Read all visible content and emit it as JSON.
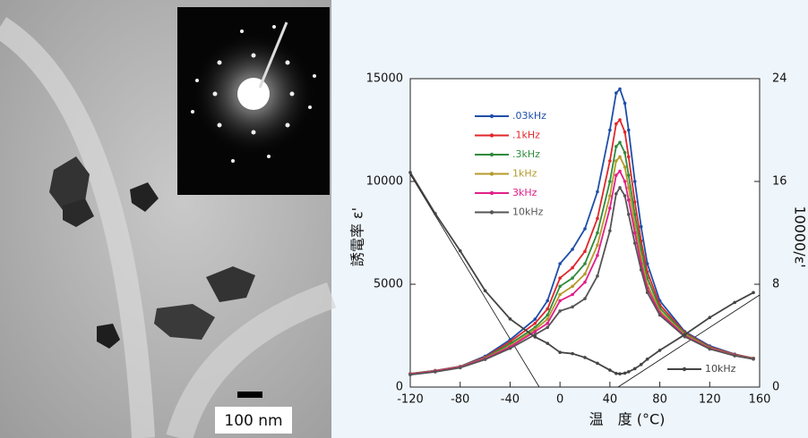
{
  "figure": {
    "scale_bar_label": "100 nm"
  },
  "chart_data": {
    "type": "line",
    "x_label": "温　度 (°C)",
    "y_label": "誘電率 ε'",
    "y2_label": "10000/ε'",
    "x": [
      -120,
      -100,
      -80,
      -60,
      -40,
      -20,
      -10,
      0,
      10,
      20,
      30,
      40,
      45,
      48,
      52,
      55,
      60,
      65,
      70,
      80,
      100,
      120,
      140,
      155
    ],
    "xlim": [
      -120,
      160
    ],
    "xticks": [
      -120,
      -80,
      -40,
      0,
      40,
      80,
      120,
      160
    ],
    "ylim": [
      0,
      15000
    ],
    "yticks": [
      0,
      5000,
      10000,
      15000
    ],
    "y2lim": [
      0,
      24
    ],
    "y2ticks": [
      0,
      8,
      16,
      24
    ],
    "legend": "upper left",
    "series": [
      {
        "name": ".03kHz",
        "color": "#1f4fa8",
        "values": [
          650,
          800,
          1000,
          1500,
          2300,
          3300,
          4200,
          6000,
          6700,
          7700,
          9500,
          12500,
          14300,
          14500,
          13800,
          12500,
          10000,
          7800,
          6000,
          4200,
          2700,
          2000,
          1600,
          1400
        ]
      },
      {
        "name": ".1kHz",
        "color": "#e0262b",
        "values": [
          650,
          800,
          1000,
          1450,
          2200,
          3100,
          3800,
          5300,
          5800,
          6600,
          8200,
          11000,
          12800,
          13000,
          12400,
          11200,
          9000,
          7100,
          5600,
          4000,
          2650,
          1950,
          1580,
          1400
        ]
      },
      {
        "name": ".3kHz",
        "color": "#2e8b3c",
        "values": [
          650,
          790,
          990,
          1420,
          2100,
          2900,
          3500,
          4900,
          5300,
          6000,
          7500,
          10000,
          11700,
          11900,
          11400,
          10300,
          8400,
          6700,
          5300,
          3850,
          2600,
          1920,
          1560,
          1390
        ]
      },
      {
        "name": "1kHz",
        "color": "#b59a2a",
        "values": [
          640,
          780,
          980,
          1400,
          2000,
          2800,
          3300,
          4500,
          4900,
          5500,
          6900,
          9300,
          11000,
          11200,
          10700,
          9700,
          7900,
          6300,
          5000,
          3700,
          2550,
          1900,
          1550,
          1380
        ]
      },
      {
        "name": "3kHz",
        "color": "#e0208a",
        "values": [
          630,
          770,
          970,
          1380,
          1950,
          2700,
          3100,
          4200,
          4500,
          5100,
          6400,
          8700,
          10300,
          10500,
          10000,
          9100,
          7500,
          6000,
          4800,
          3600,
          2500,
          1880,
          1540,
          1370
        ]
      },
      {
        "name": "10kHz",
        "color": "#555555",
        "values": [
          600,
          740,
          940,
          1340,
          1880,
          2550,
          2900,
          3700,
          3900,
          4300,
          5400,
          7600,
          9400,
          9700,
          9300,
          8400,
          7000,
          5700,
          4600,
          3500,
          2450,
          1850,
          1520,
          1360
        ]
      },
      {
        "name": "10kHz",
        "color": "#444444",
        "axis": "y2",
        "values": [
          16.7,
          13.5,
          10.6,
          7.5,
          5.3,
          3.9,
          3.4,
          2.7,
          2.6,
          2.3,
          1.85,
          1.32,
          1.06,
          1.03,
          1.08,
          1.19,
          1.43,
          1.75,
          2.17,
          2.86,
          4.08,
          5.41,
          6.58,
          7.35
        ]
      }
    ]
  }
}
